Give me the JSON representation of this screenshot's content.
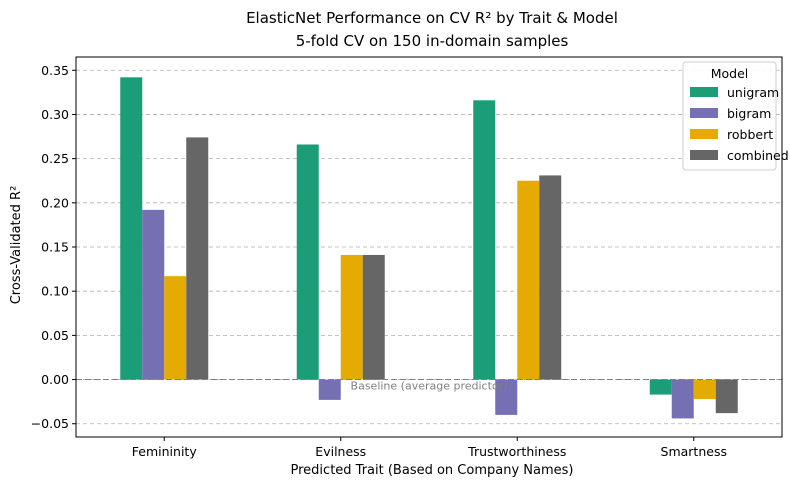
{
  "chart_data": {
    "type": "bar",
    "title": "ElasticNet Performance on CV R² by Trait & Model",
    "subtitle": "5-fold CV on 150 in-domain samples",
    "xlabel": "Predicted Trait (Based on Company Names)",
    "ylabel": "Cross-Validated R²",
    "categories": [
      "Femininity",
      "Evilness",
      "Trustworthiness",
      "Smartness"
    ],
    "series": [
      {
        "name": "unigram",
        "color": "#1b9e77",
        "values": [
          0.342,
          0.266,
          0.316,
          -0.017
        ]
      },
      {
        "name": "bigram",
        "color": "#7570b3",
        "values": [
          0.192,
          -0.023,
          -0.04,
          -0.044
        ]
      },
      {
        "name": "robbert",
        "color": "#e6ab02",
        "values": [
          0.117,
          0.141,
          0.225,
          -0.022
        ]
      },
      {
        "name": "combined",
        "color": "#666666",
        "values": [
          0.274,
          0.141,
          0.231,
          -0.038
        ]
      }
    ],
    "ylim": [
      -0.065,
      0.365
    ],
    "yticks": [
      -0.05,
      0.0,
      0.05,
      0.1,
      0.15,
      0.2,
      0.25,
      0.3,
      0.35
    ],
    "ytick_labels": [
      "−0.05",
      "0.00",
      "0.05",
      "0.10",
      "0.15",
      "0.20",
      "0.25",
      "0.30",
      "0.35"
    ],
    "grid": "y-dashed",
    "baseline": {
      "value": 0,
      "label": "Baseline (average predictor)",
      "color": "#808080"
    },
    "legend": {
      "title": "Model",
      "placement": "top-right"
    }
  }
}
